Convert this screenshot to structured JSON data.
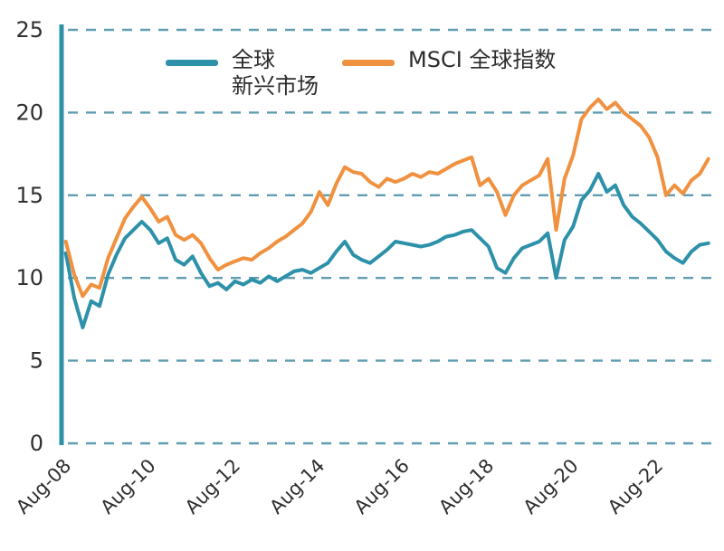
{
  "chart_data": {
    "type": "line",
    "title": "",
    "xlabel": "",
    "ylabel": "",
    "ylim": [
      0,
      25
    ],
    "xlim": [
      2008.5,
      2024.0
    ],
    "y_ticks": [
      0,
      5,
      10,
      15,
      20,
      25
    ],
    "x_ticks": [
      {
        "year": 2008.58,
        "label": "Aug-08"
      },
      {
        "year": 2010.58,
        "label": "Aug-10"
      },
      {
        "year": 2012.58,
        "label": "Aug-12"
      },
      {
        "year": 2014.58,
        "label": "Aug-14"
      },
      {
        "year": 2016.58,
        "label": "Aug-16"
      },
      {
        "year": 2018.58,
        "label": "Aug-18"
      },
      {
        "year": 2020.58,
        "label": "Aug-20"
      },
      {
        "year": 2022.58,
        "label": "Aug-22"
      }
    ],
    "grid": "dashed",
    "grid_color": "#4f93a8",
    "axis_color": "#2d91aa",
    "text_color": "#2f2f2f",
    "legend_position": "top",
    "x_years": [
      2008.6,
      2008.8,
      2009.0,
      2009.2,
      2009.4,
      2009.6,
      2009.8,
      2010.0,
      2010.2,
      2010.4,
      2010.6,
      2010.8,
      2011.0,
      2011.2,
      2011.4,
      2011.6,
      2011.8,
      2012.0,
      2012.2,
      2012.4,
      2012.6,
      2012.8,
      2013.0,
      2013.2,
      2013.4,
      2013.6,
      2013.8,
      2014.0,
      2014.2,
      2014.4,
      2014.6,
      2014.8,
      2015.0,
      2015.2,
      2015.4,
      2015.6,
      2015.8,
      2016.0,
      2016.2,
      2016.4,
      2016.6,
      2016.8,
      2017.0,
      2017.2,
      2017.4,
      2017.6,
      2017.8,
      2018.0,
      2018.2,
      2018.4,
      2018.6,
      2018.8,
      2019.0,
      2019.2,
      2019.4,
      2019.6,
      2019.8,
      2020.0,
      2020.2,
      2020.4,
      2020.6,
      2020.8,
      2021.0,
      2021.2,
      2021.4,
      2021.6,
      2021.8,
      2022.0,
      2022.2,
      2022.4,
      2022.6,
      2022.8,
      2023.0,
      2023.2,
      2023.4,
      2023.6,
      2023.8
    ],
    "series": [
      {
        "id": "emerging-markets",
        "name": "全球新兴市场",
        "legend_lines": [
          "全球",
          "新兴市场"
        ],
        "color": "#2d91aa",
        "values": [
          11.5,
          8.8,
          7.0,
          8.6,
          8.3,
          10.2,
          11.4,
          12.4,
          12.9,
          13.4,
          12.9,
          12.1,
          12.4,
          11.1,
          10.8,
          11.3,
          10.3,
          9.5,
          9.7,
          9.3,
          9.8,
          9.6,
          9.9,
          9.7,
          10.1,
          9.8,
          10.1,
          10.4,
          10.5,
          10.3,
          10.6,
          10.9,
          11.6,
          12.2,
          11.4,
          11.1,
          10.9,
          11.3,
          11.7,
          12.2,
          12.1,
          12.0,
          11.9,
          12.0,
          12.2,
          12.5,
          12.6,
          12.8,
          12.9,
          12.4,
          11.9,
          10.6,
          10.3,
          11.2,
          11.8,
          12.0,
          12.2,
          12.7,
          10.0,
          12.3,
          13.1,
          14.7,
          15.3,
          16.3,
          15.2,
          15.6,
          14.4,
          13.7,
          13.3,
          12.8,
          12.3,
          11.6,
          11.2,
          10.9,
          11.6,
          12.0,
          12.1
        ]
      },
      {
        "id": "msci-world",
        "name": "MSCI 全球指数",
        "legend_lines": [
          "MSCI 全球指数"
        ],
        "color": "#f0913f",
        "values": [
          12.2,
          10.2,
          8.9,
          9.6,
          9.4,
          11.2,
          12.4,
          13.6,
          14.3,
          14.9,
          14.2,
          13.4,
          13.7,
          12.6,
          12.3,
          12.6,
          12.1,
          11.2,
          10.5,
          10.8,
          11.0,
          11.2,
          11.1,
          11.5,
          11.8,
          12.2,
          12.5,
          12.9,
          13.3,
          14.0,
          15.2,
          14.4,
          15.7,
          16.7,
          16.4,
          16.3,
          15.8,
          15.5,
          16.0,
          15.8,
          16.0,
          16.3,
          16.1,
          16.4,
          16.3,
          16.6,
          16.9,
          17.1,
          17.3,
          15.6,
          16.0,
          15.2,
          13.8,
          15.0,
          15.6,
          15.9,
          16.2,
          17.2,
          12.9,
          16.0,
          17.4,
          19.6,
          20.3,
          20.8,
          20.2,
          20.6,
          20.0,
          19.6,
          19.2,
          18.5,
          17.3,
          15.0,
          15.6,
          15.1,
          15.9,
          16.3,
          17.2
        ]
      }
    ]
  }
}
